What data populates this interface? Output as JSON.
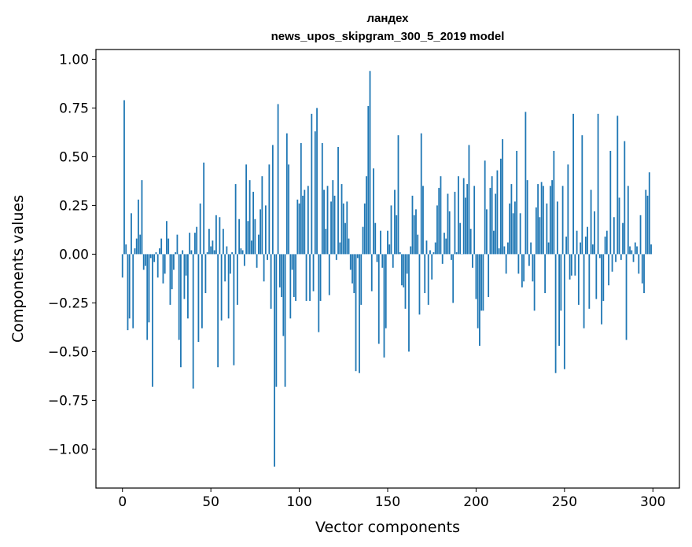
{
  "chart_data": {
    "type": "bar",
    "title_line1": "ландех",
    "title_line2": "news_upos_skipgram_300_5_2019 model",
    "xlabel": "Vector components",
    "ylabel": "Components values",
    "xlim": [
      -15,
      315
    ],
    "ylim": [
      -1.2,
      1.05
    ],
    "x_ticks": [
      {
        "value": 0,
        "label": "0"
      },
      {
        "value": 50,
        "label": "50"
      },
      {
        "value": 100,
        "label": "100"
      },
      {
        "value": 150,
        "label": "150"
      },
      {
        "value": 200,
        "label": "200"
      },
      {
        "value": 250,
        "label": "250"
      },
      {
        "value": 300,
        "label": "300"
      }
    ],
    "y_ticks": [
      {
        "value": 1.0,
        "label": "1.00"
      },
      {
        "value": 0.75,
        "label": "0.75"
      },
      {
        "value": 0.5,
        "label": "0.50"
      },
      {
        "value": 0.25,
        "label": "0.25"
      },
      {
        "value": 0.0,
        "label": "0.00"
      },
      {
        "value": -0.25,
        "label": "−0.25"
      },
      {
        "value": -0.5,
        "label": "−0.50"
      },
      {
        "value": -0.75,
        "label": "−0.75"
      },
      {
        "value": -1.0,
        "label": "−1.00"
      }
    ],
    "bar_color": "#1f77b4",
    "values": [
      -0.12,
      0.79,
      0.05,
      -0.39,
      -0.33,
      0.21,
      -0.38,
      0.03,
      0.08,
      0.28,
      0.1,
      0.38,
      -0.08,
      -0.06,
      -0.44,
      -0.35,
      -0.02,
      -0.68,
      -0.04,
      0.01,
      -0.12,
      0.03,
      0.08,
      -0.15,
      -0.1,
      0.17,
      0.08,
      -0.26,
      -0.18,
      -0.08,
      0.01,
      0.1,
      -0.44,
      -0.58,
      0.02,
      -0.23,
      -0.11,
      -0.33,
      0.11,
      0.02,
      -0.69,
      0.11,
      0.14,
      -0.45,
      0.26,
      -0.38,
      0.47,
      -0.2,
      0.01,
      0.13,
      0.04,
      0.07,
      0.02,
      0.2,
      -0.58,
      0.19,
      -0.34,
      0.13,
      -0.14,
      0.04,
      -0.33,
      -0.1,
      0.01,
      -0.57,
      0.36,
      -0.26,
      0.18,
      0.03,
      0.02,
      -0.06,
      0.46,
      0.17,
      0.38,
      0.07,
      0.32,
      0.18,
      -0.07,
      0.1,
      0.23,
      0.4,
      -0.14,
      0.25,
      -0.03,
      0.46,
      -0.28,
      0.56,
      -1.09,
      -0.68,
      0.77,
      -0.17,
      -0.22,
      -0.42,
      -0.68,
      0.62,
      0.46,
      -0.33,
      -0.08,
      -0.22,
      -0.24,
      0.28,
      0.26,
      0.57,
      0.3,
      0.33,
      -0.24,
      0.35,
      -0.24,
      0.72,
      -0.19,
      0.63,
      0.75,
      -0.4,
      -0.24,
      0.57,
      0.33,
      0.13,
      0.35,
      -0.21,
      0.27,
      0.38,
      0.3,
      -0.03,
      0.55,
      0.06,
      0.36,
      0.26,
      0.16,
      0.27,
      0.08,
      -0.08,
      -0.15,
      -0.2,
      -0.6,
      -0.02,
      -0.61,
      -0.26,
      0.14,
      0.26,
      0.4,
      0.76,
      0.94,
      -0.19,
      0.44,
      0.16,
      -0.04,
      -0.46,
      0.12,
      -0.07,
      -0.53,
      -0.38,
      0.12,
      0.05,
      0.25,
      -0.07,
      0.33,
      0.2,
      0.61,
      0.01,
      -0.16,
      -0.17,
      -0.28,
      -0.1,
      -0.5,
      0.04,
      0.3,
      0.2,
      0.23,
      0.1,
      -0.31,
      0.62,
      0.35,
      -0.2,
      0.07,
      -0.26,
      0.02,
      -0.13,
      0.01,
      0.06,
      0.25,
      0.34,
      0.4,
      -0.05,
      0.11,
      0.08,
      0.31,
      0.22,
      -0.03,
      -0.25,
      0.32,
      0.01,
      0.4,
      0.16,
      0.0,
      0.39,
      0.29,
      0.36,
      0.56,
      0.13,
      -0.07,
      0.35,
      -0.23,
      -0.38,
      -0.47,
      -0.29,
      -0.29,
      0.48,
      0.23,
      -0.22,
      0.34,
      0.4,
      0.12,
      0.31,
      0.43,
      0.03,
      0.49,
      0.59,
      0.04,
      -0.1,
      0.06,
      0.26,
      0.36,
      0.21,
      0.27,
      0.53,
      -0.1,
      0.21,
      -0.17,
      -0.14,
      0.73,
      0.38,
      -0.06,
      0.06,
      -0.14,
      -0.29,
      0.24,
      0.36,
      0.19,
      0.37,
      0.35,
      -0.2,
      0.26,
      0.06,
      0.35,
      0.38,
      0.53,
      -0.61,
      0.27,
      -0.47,
      -0.29,
      0.35,
      -0.59,
      0.09,
      0.46,
      -0.13,
      -0.11,
      0.72,
      -0.11,
      0.12,
      -0.26,
      0.06,
      0.61,
      -0.38,
      0.09,
      0.14,
      -0.28,
      0.33,
      0.05,
      0.22,
      -0.23,
      0.72,
      -0.02,
      -0.36,
      -0.24,
      0.09,
      0.12,
      -0.16,
      0.53,
      -0.09,
      0.19,
      -0.04,
      0.71,
      0.29,
      -0.03,
      0.16,
      0.58,
      -0.44,
      0.35,
      0.04,
      0.02,
      -0.04,
      0.06,
      0.04,
      -0.1,
      0.2,
      -0.15,
      -0.2,
      0.33,
      0.3,
      0.42,
      0.05
    ]
  }
}
